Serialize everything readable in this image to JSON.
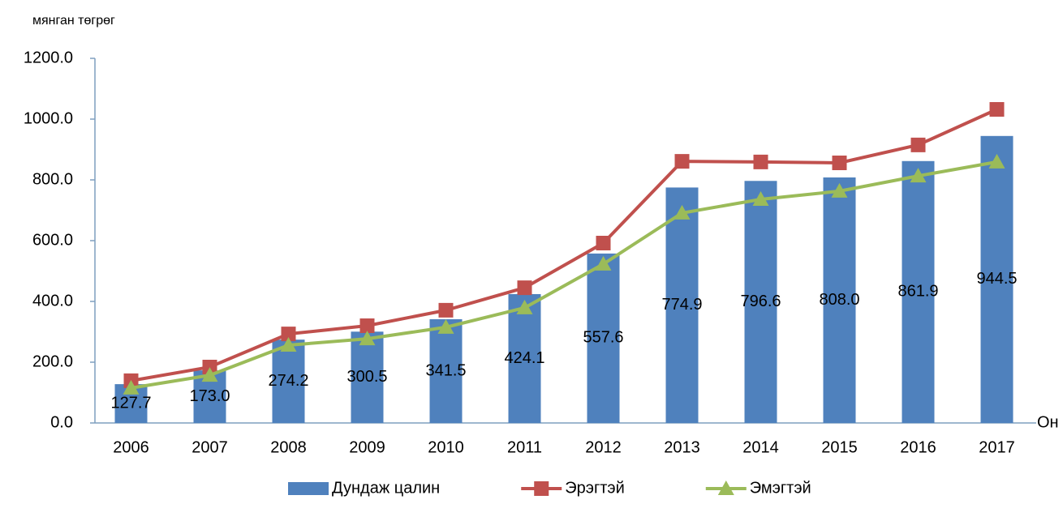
{
  "chart_data": {
    "type": "bar_line",
    "y_label": "мянган төгрөг",
    "x_label": "Он",
    "categories": [
      "2006",
      "2007",
      "2008",
      "2009",
      "2010",
      "2011",
      "2012",
      "2013",
      "2014",
      "2015",
      "2016",
      "2017"
    ],
    "ylim": [
      0,
      1200
    ],
    "yticks": [
      {
        "value": 0,
        "label": "0.0"
      },
      {
        "value": 200,
        "label": "200.0"
      },
      {
        "value": 400,
        "label": "400.0"
      },
      {
        "value": 600,
        "label": "600.0"
      },
      {
        "value": 800,
        "label": "800.0"
      },
      {
        "value": 1000,
        "label": "1000.0"
      },
      {
        "value": 1200,
        "label": "1200.0"
      }
    ],
    "series": [
      {
        "name": "Дундаж цалин",
        "kind": "bar",
        "color": "#4f81bd",
        "values": [
          127.7,
          173.0,
          274.2,
          300.5,
          341.5,
          424.1,
          557.6,
          774.9,
          796.6,
          808.0,
          861.9,
          944.5
        ],
        "value_labels": [
          "127.7",
          "173.0",
          "274.2",
          "300.5",
          "341.5",
          "424.1",
          "557.6",
          "774.9",
          "796.6",
          "808.0",
          "861.9",
          "944.5"
        ]
      },
      {
        "name": "Эрэгтэй",
        "kind": "line",
        "marker": "square",
        "color": "#c0504d",
        "values": [
          139,
          184,
          293,
          320,
          371,
          445,
          592,
          861,
          859,
          856,
          915,
          1032
        ]
      },
      {
        "name": "Эмэгтэй",
        "kind": "line",
        "marker": "triangle",
        "color": "#9bbb59",
        "values": [
          115,
          157,
          256,
          277,
          315,
          379,
          523,
          691,
          736,
          763,
          813,
          859
        ]
      }
    ],
    "legend": "bottom"
  }
}
